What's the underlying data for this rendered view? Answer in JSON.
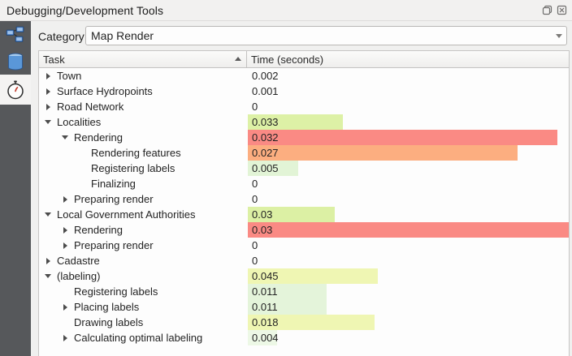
{
  "window": {
    "title": "Debugging/Development Tools"
  },
  "sidebar": {
    "tabs": [
      {
        "icon": "network-logger-icon",
        "selected": false
      },
      {
        "icon": "query-logger-icon",
        "selected": false
      },
      {
        "icon": "profiler-stopwatch-icon",
        "selected": true
      }
    ]
  },
  "toolbar": {
    "category_label": "Category",
    "category_value": "Map Render"
  },
  "tree": {
    "columns": [
      {
        "label": "Task",
        "sort": "ascending"
      },
      {
        "label": "Time (seconds)",
        "sort": null
      }
    ]
  },
  "chart_data": {
    "type": "table",
    "title": "Map Render profile",
    "columns": [
      "Task",
      "Time (seconds)"
    ],
    "rows": [
      {
        "label": "Town",
        "level": 1,
        "arrow": "collapsed",
        "value": "0.002",
        "bar_pct": 0,
        "bar_color": null
      },
      {
        "label": "Surface Hydropoints",
        "level": 1,
        "arrow": "collapsed",
        "value": "0.001",
        "bar_pct": 0,
        "bar_color": null
      },
      {
        "label": "Road Network",
        "level": 1,
        "arrow": "collapsed",
        "value": "0",
        "bar_pct": 0,
        "bar_color": null
      },
      {
        "label": "Localities",
        "level": 1,
        "arrow": "expanded",
        "value": "0.033",
        "bar_pct": 29.7,
        "bar_color": "#ddf1a6"
      },
      {
        "label": "Rendering",
        "level": 2,
        "arrow": "expanded",
        "value": "0.032",
        "bar_pct": 96.5,
        "bar_color": "#fa8a84"
      },
      {
        "label": "Rendering features",
        "level": 3,
        "arrow": "none",
        "value": "0.027",
        "bar_pct": 84,
        "bar_color": "#fcae80"
      },
      {
        "label": "Registering labels",
        "level": 3,
        "arrow": "none",
        "value": "0.005",
        "bar_pct": 15.7,
        "bar_color": "#e2f4d6"
      },
      {
        "label": "Finalizing",
        "level": 3,
        "arrow": "none",
        "value": "0",
        "bar_pct": 0,
        "bar_color": null
      },
      {
        "label": "Preparing render",
        "level": 2,
        "arrow": "collapsed",
        "value": "0",
        "bar_pct": 0,
        "bar_color": null
      },
      {
        "label": "Local Government Authorities",
        "level": 1,
        "arrow": "expanded",
        "value": "0.03",
        "bar_pct": 27,
        "bar_color": "#dcf0a4"
      },
      {
        "label": "Rendering",
        "level": 2,
        "arrow": "collapsed",
        "value": "0.03",
        "bar_pct": 100,
        "bar_color": "#fa8a84"
      },
      {
        "label": "Preparing render",
        "level": 2,
        "arrow": "collapsed",
        "value": "0",
        "bar_pct": 0,
        "bar_color": null
      },
      {
        "label": "Cadastre",
        "level": 1,
        "arrow": "collapsed",
        "value": "0",
        "bar_pct": 0,
        "bar_color": null
      },
      {
        "label": "(labeling)",
        "level": 1,
        "arrow": "expanded",
        "value": "0.045",
        "bar_pct": 40.5,
        "bar_color": "#eff6b3"
      },
      {
        "label": "Registering labels",
        "level": 2,
        "arrow": "none",
        "value": "0.011",
        "bar_pct": 24.5,
        "bar_color": "#e4f4da"
      },
      {
        "label": "Placing labels",
        "level": 2,
        "arrow": "collapsed",
        "value": "0.011",
        "bar_pct": 24.5,
        "bar_color": "#e4f4da"
      },
      {
        "label": "Drawing labels",
        "level": 2,
        "arrow": "none",
        "value": "0.018",
        "bar_pct": 39.5,
        "bar_color": "#eff6b3"
      },
      {
        "label": "Calculating optimal labeling",
        "level": 2,
        "arrow": "collapsed",
        "value": "0.004",
        "bar_pct": 9,
        "bar_color": "#edf8e6"
      }
    ]
  },
  "colors": {
    "sidebar_bg": "#56585b",
    "sidebar_selected_bg": "#f4f3f2",
    "panel_bg": "#f0f0ef",
    "tree_bg": "#fdfdfd",
    "bar_red": "#fa8a84",
    "bar_orange": "#fcae80",
    "bar_green": "#ddf1a6",
    "bar_yellow": "#eff6b3"
  }
}
